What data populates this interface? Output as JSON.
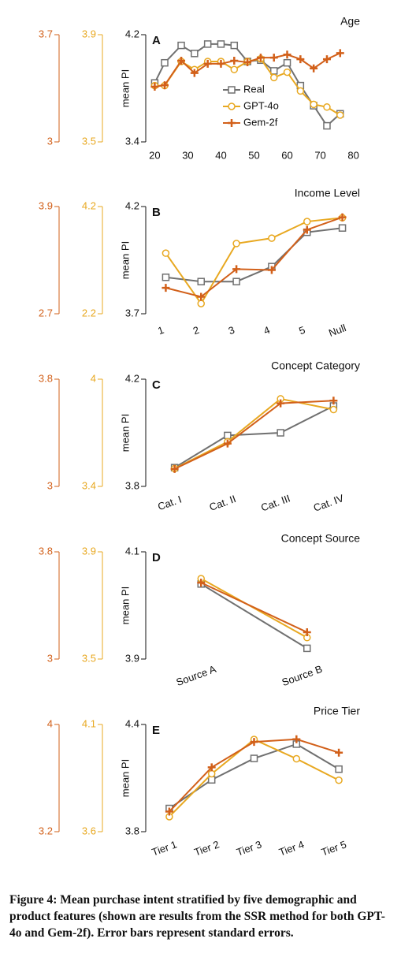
{
  "chart_data": [
    {
      "type": "line",
      "panel_label": "A",
      "title": "Age",
      "ylabel": "mean PI",
      "x": [
        20,
        23,
        28,
        32,
        36,
        40,
        44,
        48,
        52,
        56,
        60,
        64,
        68,
        72,
        76
      ],
      "xlim": [
        18,
        82
      ],
      "xticks": [
        20,
        30,
        40,
        50,
        60,
        70,
        80
      ],
      "ylim": [
        3.4,
        4.2
      ],
      "yticks": [
        3.4,
        4.2
      ],
      "y2lim": [
        3.5,
        3.9
      ],
      "y2ticks": [
        3.5,
        3.9
      ],
      "y3lim": [
        3.0,
        3.7
      ],
      "y3ticks": [
        3.0,
        3.7
      ],
      "legend": true,
      "series": [
        {
          "name": "Real",
          "color": "#707070",
          "marker": "square",
          "axis": "y",
          "values": [
            3.84,
            3.99,
            4.12,
            4.06,
            4.13,
            4.13,
            4.12,
            4.0,
            4.01,
            3.93,
            3.99,
            3.82,
            3.67,
            3.52,
            3.61
          ]
        },
        {
          "name": "GPT-4o",
          "color": "#e8a820",
          "marker": "circle",
          "axis": "y2",
          "values": [
            3.71,
            3.71,
            3.8,
            3.77,
            3.8,
            3.8,
            3.77,
            3.8,
            3.81,
            3.74,
            3.76,
            3.69,
            3.64,
            3.63,
            3.6
          ]
        },
        {
          "name": "Gem-2f",
          "color": "#d2601a",
          "marker": "plus",
          "axis": "y3",
          "values": [
            3.36,
            3.37,
            3.53,
            3.45,
            3.51,
            3.51,
            3.53,
            3.52,
            3.55,
            3.55,
            3.57,
            3.54,
            3.48,
            3.54,
            3.58
          ]
        }
      ]
    },
    {
      "type": "line",
      "panel_label": "B",
      "title": "Income Level",
      "ylabel": "mean PI",
      "categories": [
        "1",
        "2",
        "3",
        "4",
        "5",
        "Null"
      ],
      "ylim": [
        3.7,
        4.2
      ],
      "yticks": [
        3.7,
        4.2
      ],
      "y2lim": [
        2.2,
        4.2
      ],
      "y2ticks": [
        2.2,
        4.2
      ],
      "y3lim": [
        2.7,
        3.9
      ],
      "y3ticks": [
        2.7,
        3.9
      ],
      "series": [
        {
          "color": "#707070",
          "marker": "square",
          "axis": "y",
          "values": [
            3.87,
            3.85,
            3.85,
            3.92,
            4.08,
            4.1
          ]
        },
        {
          "color": "#e8a820",
          "marker": "circle",
          "axis": "y2",
          "values": [
            3.33,
            2.39,
            3.51,
            3.61,
            3.92,
            3.99
          ]
        },
        {
          "color": "#d2601a",
          "marker": "plus",
          "axis": "y3",
          "values": [
            2.99,
            2.89,
            3.2,
            3.19,
            3.64,
            3.78
          ]
        }
      ]
    },
    {
      "type": "line",
      "panel_label": "C",
      "title": "Concept Category",
      "ylabel": "mean PI",
      "categories": [
        "Cat. I",
        "Cat. II",
        "Cat. III",
        "Cat. IV"
      ],
      "ylim": [
        3.8,
        4.2
      ],
      "yticks": [
        3.8,
        4.2
      ],
      "y2lim": [
        3.4,
        4.0
      ],
      "y2ticks": [
        3.4,
        4.0
      ],
      "y3lim": [
        3.0,
        3.8
      ],
      "y3ticks": [
        3.0,
        3.8
      ],
      "series": [
        {
          "color": "#707070",
          "marker": "square",
          "axis": "y",
          "values": [
            3.87,
            3.99,
            4.0,
            4.1
          ]
        },
        {
          "color": "#e8a820",
          "marker": "circle",
          "axis": "y2",
          "values": [
            3.5,
            3.65,
            3.89,
            3.83
          ]
        },
        {
          "color": "#d2601a",
          "marker": "plus",
          "axis": "y3",
          "values": [
            3.13,
            3.32,
            3.62,
            3.64
          ]
        }
      ]
    },
    {
      "type": "line",
      "panel_label": "D",
      "title": "Concept Source",
      "ylabel": "mean PI",
      "categories": [
        "Source A",
        "Source B"
      ],
      "ylim": [
        3.9,
        4.1
      ],
      "yticks": [
        3.9,
        4.1
      ],
      "y2lim": [
        3.5,
        3.9
      ],
      "y2ticks": [
        3.5,
        3.9
      ],
      "y3lim": [
        3.0,
        3.8
      ],
      "y3ticks": [
        3.0,
        3.8
      ],
      "series": [
        {
          "color": "#707070",
          "marker": "square",
          "axis": "y",
          "values": [
            4.04,
            3.92
          ]
        },
        {
          "color": "#e8a820",
          "marker": "circle",
          "axis": "y2",
          "values": [
            3.8,
            3.58
          ]
        },
        {
          "color": "#d2601a",
          "marker": "plus",
          "axis": "y3",
          "values": [
            3.57,
            3.2
          ]
        }
      ]
    },
    {
      "type": "line",
      "panel_label": "E",
      "title": "Price Tier",
      "ylabel": "mean PI",
      "categories": [
        "Tier 1",
        "Tier 2",
        "Tier 3",
        "Tier 4",
        "Tier 5"
      ],
      "ylim": [
        3.8,
        4.4
      ],
      "yticks": [
        3.8,
        4.4
      ],
      "y2lim": [
        3.6,
        4.1
      ],
      "y2ticks": [
        3.6,
        4.1
      ],
      "y3lim": [
        3.2,
        4.0
      ],
      "y3ticks": [
        3.2,
        4.0
      ],
      "series": [
        {
          "color": "#707070",
          "marker": "square",
          "axis": "y",
          "values": [
            3.93,
            4.09,
            4.21,
            4.29,
            4.15
          ]
        },
        {
          "color": "#e8a820",
          "marker": "circle",
          "axis": "y2",
          "values": [
            3.67,
            3.87,
            4.03,
            3.94,
            3.84
          ]
        },
        {
          "color": "#d2601a",
          "marker": "plus",
          "axis": "y3",
          "values": [
            3.35,
            3.68,
            3.87,
            3.89,
            3.79
          ]
        }
      ]
    }
  ],
  "caption": "Figure 4: Mean purchase intent stratified by five demographic and product features (shown are results from the SSR method for both GPT-4o and Gem-2f). Error bars represent standard errors."
}
